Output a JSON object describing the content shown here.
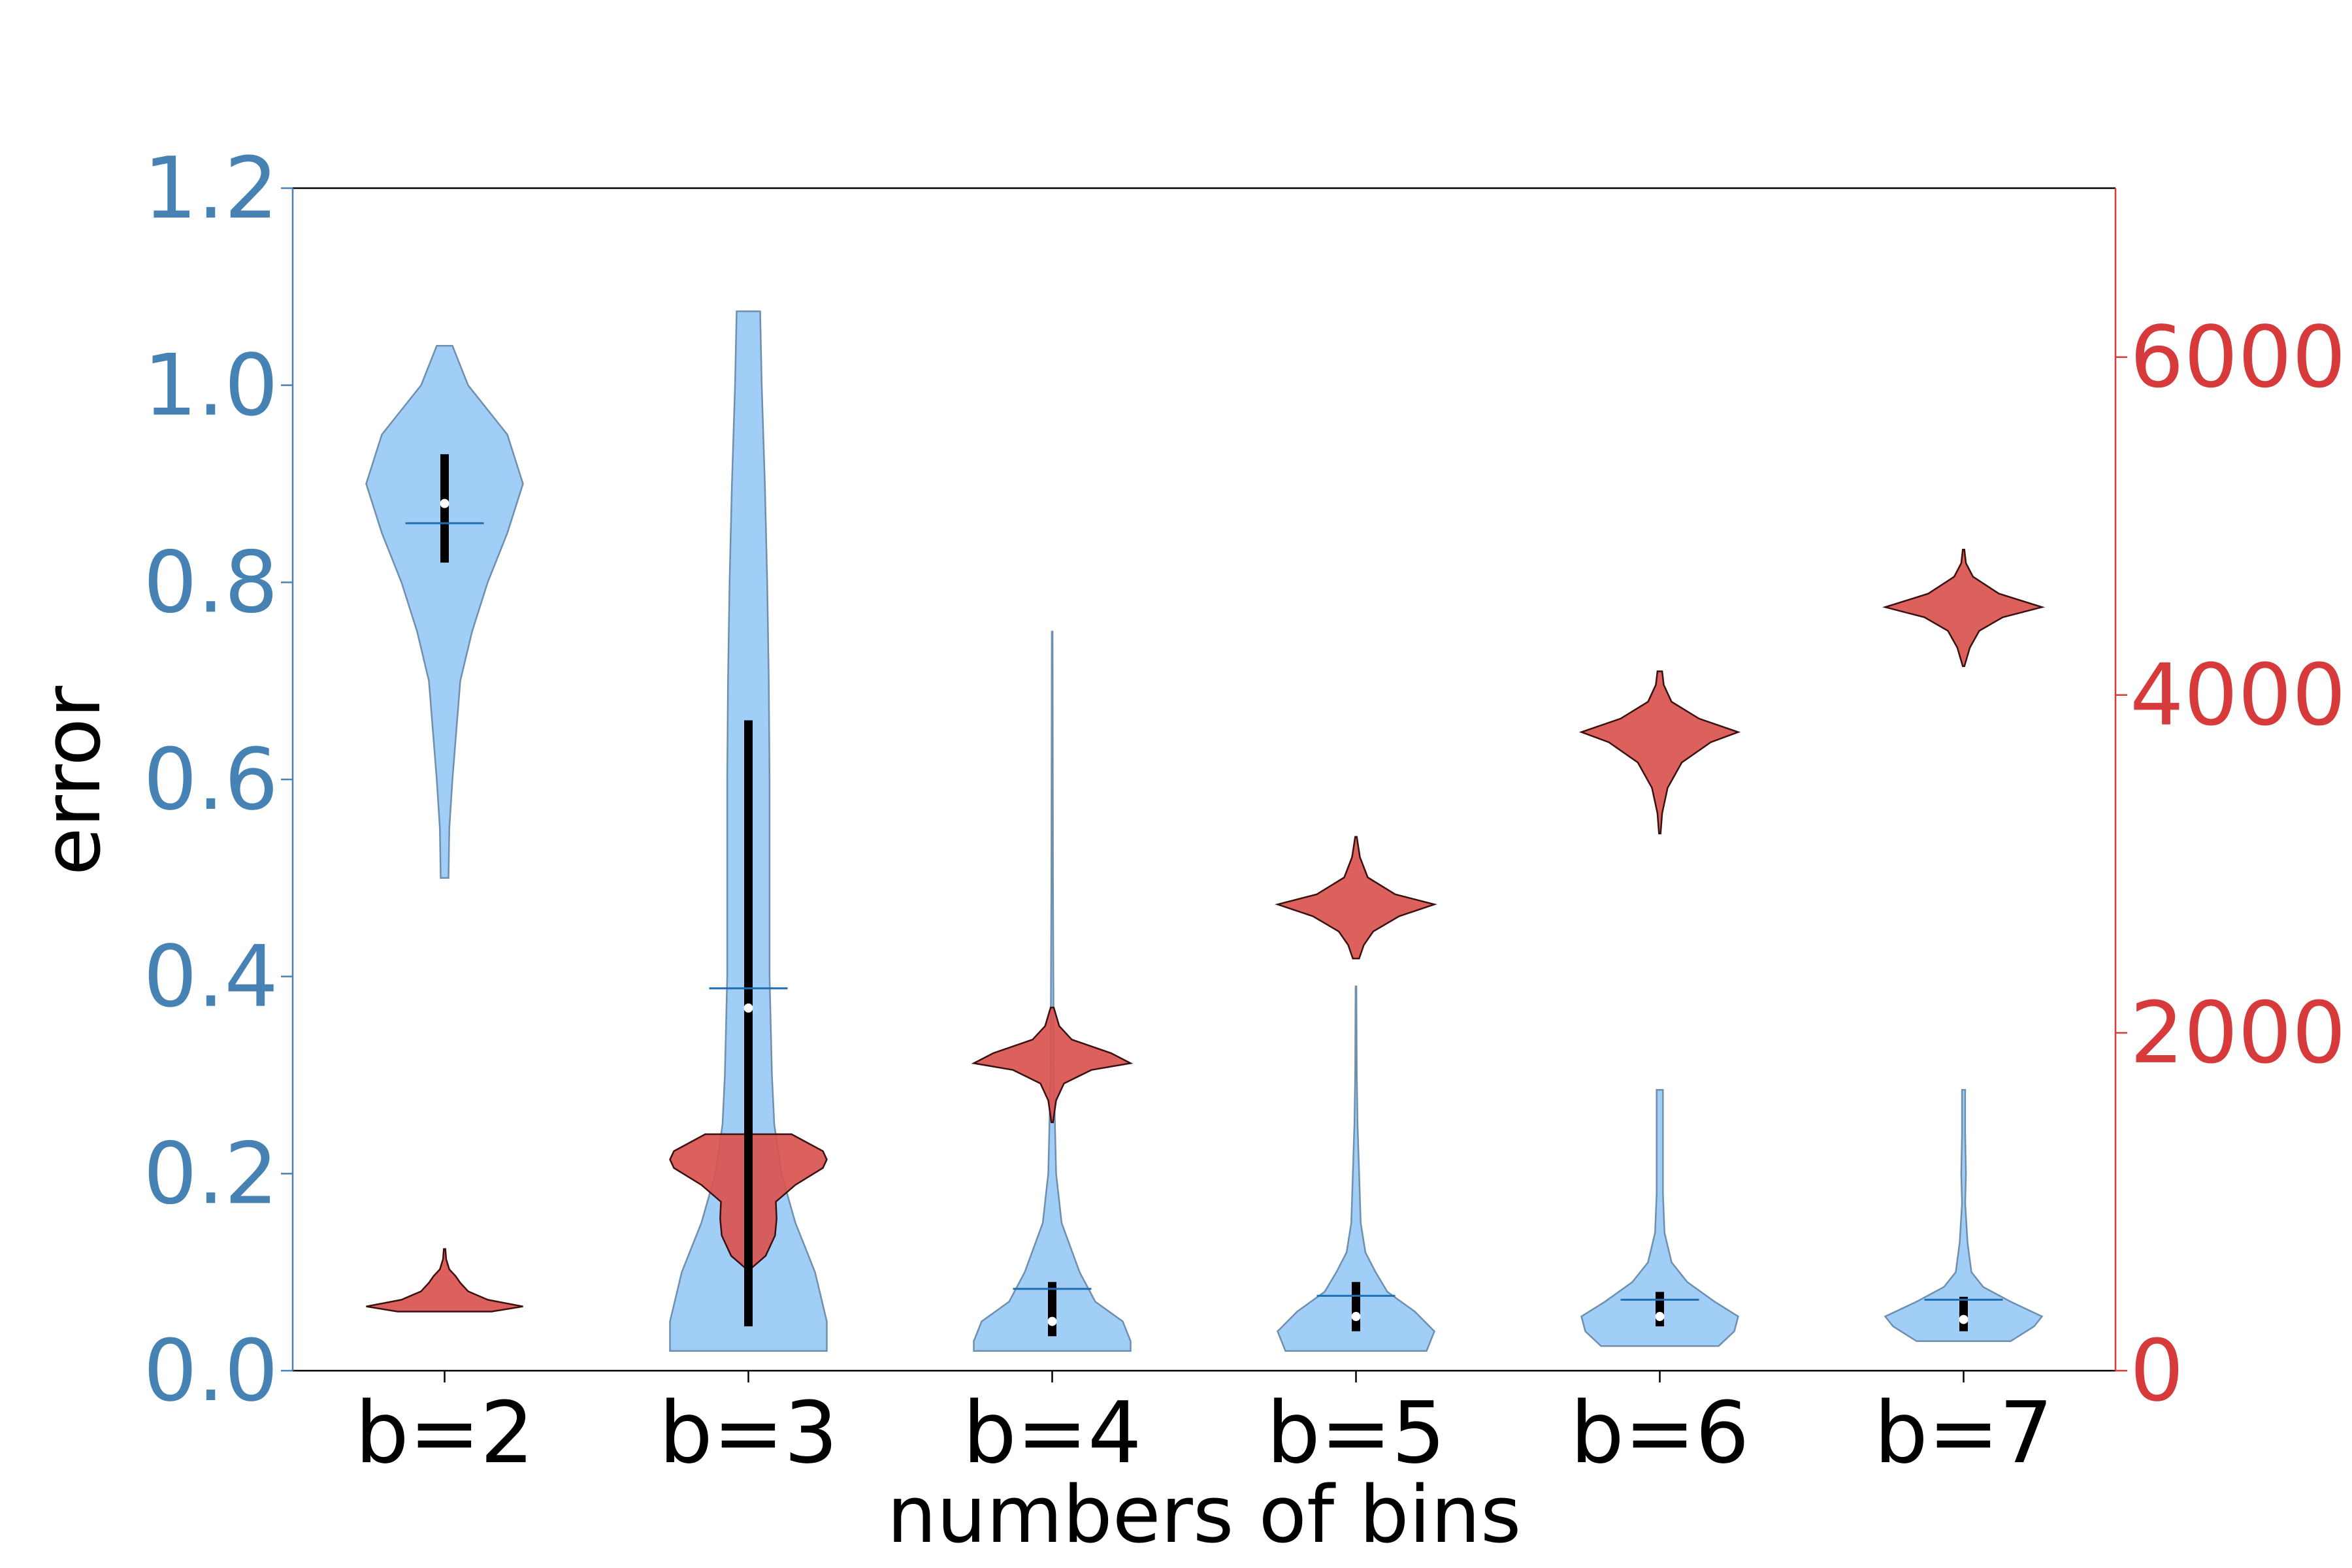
{
  "chart_data": {
    "type": "violin",
    "categories": [
      "b=2",
      "b=3",
      "b=4",
      "b=5",
      "b=6",
      "b=7"
    ],
    "xlabel": "numbers of bins",
    "ylabel": "error",
    "y_left": {
      "range": [
        0,
        1.2
      ],
      "ticks": [
        0.0,
        0.2,
        0.4,
        0.6,
        0.8,
        1.0,
        1.2
      ],
      "tick_labels": [
        "0.0",
        "0.2",
        "0.4",
        "0.6",
        "0.8",
        "1.0",
        "1.2"
      ],
      "color": "#4682b4"
    },
    "y_right": {
      "range": [
        0,
        7000
      ],
      "ticks": [
        0,
        2000,
        4000,
        6000
      ],
      "tick_labels": [
        "0",
        "2000",
        "4000",
        "6000"
      ],
      "color": "#d63a3a"
    },
    "series": [
      {
        "axis": "left",
        "fill": "#9ccbf7",
        "stroke": "#6f8fae",
        "violins": [
          {
            "min": 0.5,
            "max": 1.04,
            "mean": 0.86,
            "median": 0.88,
            "q1": 0.82,
            "q3": 0.93,
            "profile": [
              [
                0.5,
                0.05
              ],
              [
                0.55,
                0.06
              ],
              [
                0.6,
                0.1
              ],
              [
                0.65,
                0.15
              ],
              [
                0.7,
                0.2
              ],
              [
                0.75,
                0.35
              ],
              [
                0.8,
                0.55
              ],
              [
                0.85,
                0.8
              ],
              [
                0.9,
                1.0
              ],
              [
                0.95,
                0.8
              ],
              [
                1.0,
                0.3
              ],
              [
                1.04,
                0.1
              ]
            ]
          },
          {
            "min": 0.02,
            "max": 1.075,
            "mean": 0.388,
            "median": 0.368,
            "q1": 0.045,
            "q3": 0.66,
            "profile": [
              [
                0.02,
                1.0
              ],
              [
                0.05,
                1.0
              ],
              [
                0.1,
                0.85
              ],
              [
                0.15,
                0.6
              ],
              [
                0.2,
                0.42
              ],
              [
                0.25,
                0.33
              ],
              [
                0.3,
                0.3
              ],
              [
                0.4,
                0.27
              ],
              [
                0.5,
                0.27
              ],
              [
                0.6,
                0.27
              ],
              [
                0.7,
                0.26
              ],
              [
                0.8,
                0.24
              ],
              [
                0.9,
                0.21
              ],
              [
                1.0,
                0.17
              ],
              [
                1.075,
                0.15
              ]
            ]
          },
          {
            "min": 0.02,
            "max": 0.75,
            "mean": 0.083,
            "median": 0.05,
            "q1": 0.035,
            "q3": 0.09,
            "profile": [
              [
                0.02,
                1.0
              ],
              [
                0.03,
                1.0
              ],
              [
                0.05,
                0.9
              ],
              [
                0.07,
                0.55
              ],
              [
                0.1,
                0.35
              ],
              [
                0.15,
                0.12
              ],
              [
                0.2,
                0.05
              ],
              [
                0.3,
                0.02
              ],
              [
                0.5,
                0.01
              ],
              [
                0.75,
                0.005
              ]
            ]
          },
          {
            "min": 0.02,
            "max": 0.39,
            "mean": 0.076,
            "median": 0.055,
            "q1": 0.04,
            "q3": 0.09,
            "profile": [
              [
                0.02,
                0.9
              ],
              [
                0.04,
                1.0
              ],
              [
                0.06,
                0.75
              ],
              [
                0.08,
                0.4
              ],
              [
                0.1,
                0.25
              ],
              [
                0.12,
                0.12
              ],
              [
                0.15,
                0.06
              ],
              [
                0.2,
                0.04
              ],
              [
                0.25,
                0.02
              ],
              [
                0.3,
                0.01
              ],
              [
                0.39,
                0.005
              ]
            ]
          },
          {
            "min": 0.025,
            "max": 0.285,
            "mean": 0.072,
            "median": 0.055,
            "q1": 0.045,
            "q3": 0.08,
            "profile": [
              [
                0.025,
                0.75
              ],
              [
                0.04,
                0.95
              ],
              [
                0.055,
                1.0
              ],
              [
                0.07,
                0.7
              ],
              [
                0.09,
                0.35
              ],
              [
                0.11,
                0.15
              ],
              [
                0.14,
                0.06
              ],
              [
                0.18,
                0.04
              ],
              [
                0.22,
                0.04
              ],
              [
                0.26,
                0.04
              ],
              [
                0.285,
                0.04
              ]
            ]
          },
          {
            "min": 0.03,
            "max": 0.285,
            "mean": 0.072,
            "median": 0.052,
            "q1": 0.04,
            "q3": 0.075,
            "profile": [
              [
                0.03,
                0.6
              ],
              [
                0.045,
                0.9
              ],
              [
                0.055,
                1.0
              ],
              [
                0.07,
                0.6
              ],
              [
                0.085,
                0.25
              ],
              [
                0.1,
                0.1
              ],
              [
                0.13,
                0.05
              ],
              [
                0.17,
                0.02
              ],
              [
                0.2,
                0.03
              ],
              [
                0.24,
                0.02
              ],
              [
                0.285,
                0.02
              ]
            ]
          }
        ]
      },
      {
        "axis": "right",
        "fill": "#d9544f",
        "stroke": "#3a1010",
        "violins": [
          {
            "min": 350,
            "max": 720,
            "profile": [
              [
                350,
                0.6
              ],
              [
                380,
                1.0
              ],
              [
                420,
                0.55
              ],
              [
                470,
                0.3
              ],
              [
                520,
                0.2
              ],
              [
                560,
                0.14
              ],
              [
                600,
                0.06
              ],
              [
                660,
                0.02
              ],
              [
                720,
                0.01
              ]
            ]
          },
          {
            "min": 600,
            "max": 1400,
            "profile": [
              [
                600,
                0.02
              ],
              [
                680,
                0.22
              ],
              [
                800,
                0.34
              ],
              [
                900,
                0.36
              ],
              [
                1000,
                0.35
              ],
              [
                1100,
                0.6
              ],
              [
                1200,
                0.95
              ],
              [
                1250,
                1.0
              ],
              [
                1300,
                0.95
              ],
              [
                1400,
                0.55
              ]
            ]
          },
          {
            "min": 1470,
            "max": 2150,
            "profile": [
              [
                1470,
                0.01
              ],
              [
                1600,
                0.05
              ],
              [
                1700,
                0.15
              ],
              [
                1780,
                0.5
              ],
              [
                1820,
                1.0
              ],
              [
                1880,
                0.75
              ],
              [
                1960,
                0.25
              ],
              [
                2040,
                0.09
              ],
              [
                2150,
                0.02
              ]
            ]
          },
          {
            "min": 2440,
            "max": 3160,
            "profile": [
              [
                2440,
                0.04
              ],
              [
                2520,
                0.1
              ],
              [
                2600,
                0.22
              ],
              [
                2690,
                0.55
              ],
              [
                2760,
                1.0
              ],
              [
                2820,
                0.5
              ],
              [
                2920,
                0.15
              ],
              [
                3040,
                0.05
              ],
              [
                3160,
                0.01
              ]
            ]
          },
          {
            "min": 3180,
            "max": 4140,
            "profile": [
              [
                3180,
                0.01
              ],
              [
                3300,
                0.03
              ],
              [
                3450,
                0.1
              ],
              [
                3600,
                0.28
              ],
              [
                3720,
                0.65
              ],
              [
                3780,
                1.0
              ],
              [
                3860,
                0.5
              ],
              [
                3960,
                0.15
              ],
              [
                4060,
                0.05
              ],
              [
                4140,
                0.03
              ]
            ]
          },
          {
            "min": 4170,
            "max": 4860,
            "profile": [
              [
                4170,
                0.01
              ],
              [
                4280,
                0.08
              ],
              [
                4380,
                0.2
              ],
              [
                4460,
                0.5
              ],
              [
                4520,
                1.0
              ],
              [
                4600,
                0.45
              ],
              [
                4700,
                0.12
              ],
              [
                4780,
                0.03
              ],
              [
                4860,
                0.01
              ]
            ]
          }
        ]
      }
    ],
    "grid": false,
    "legend": "none"
  }
}
